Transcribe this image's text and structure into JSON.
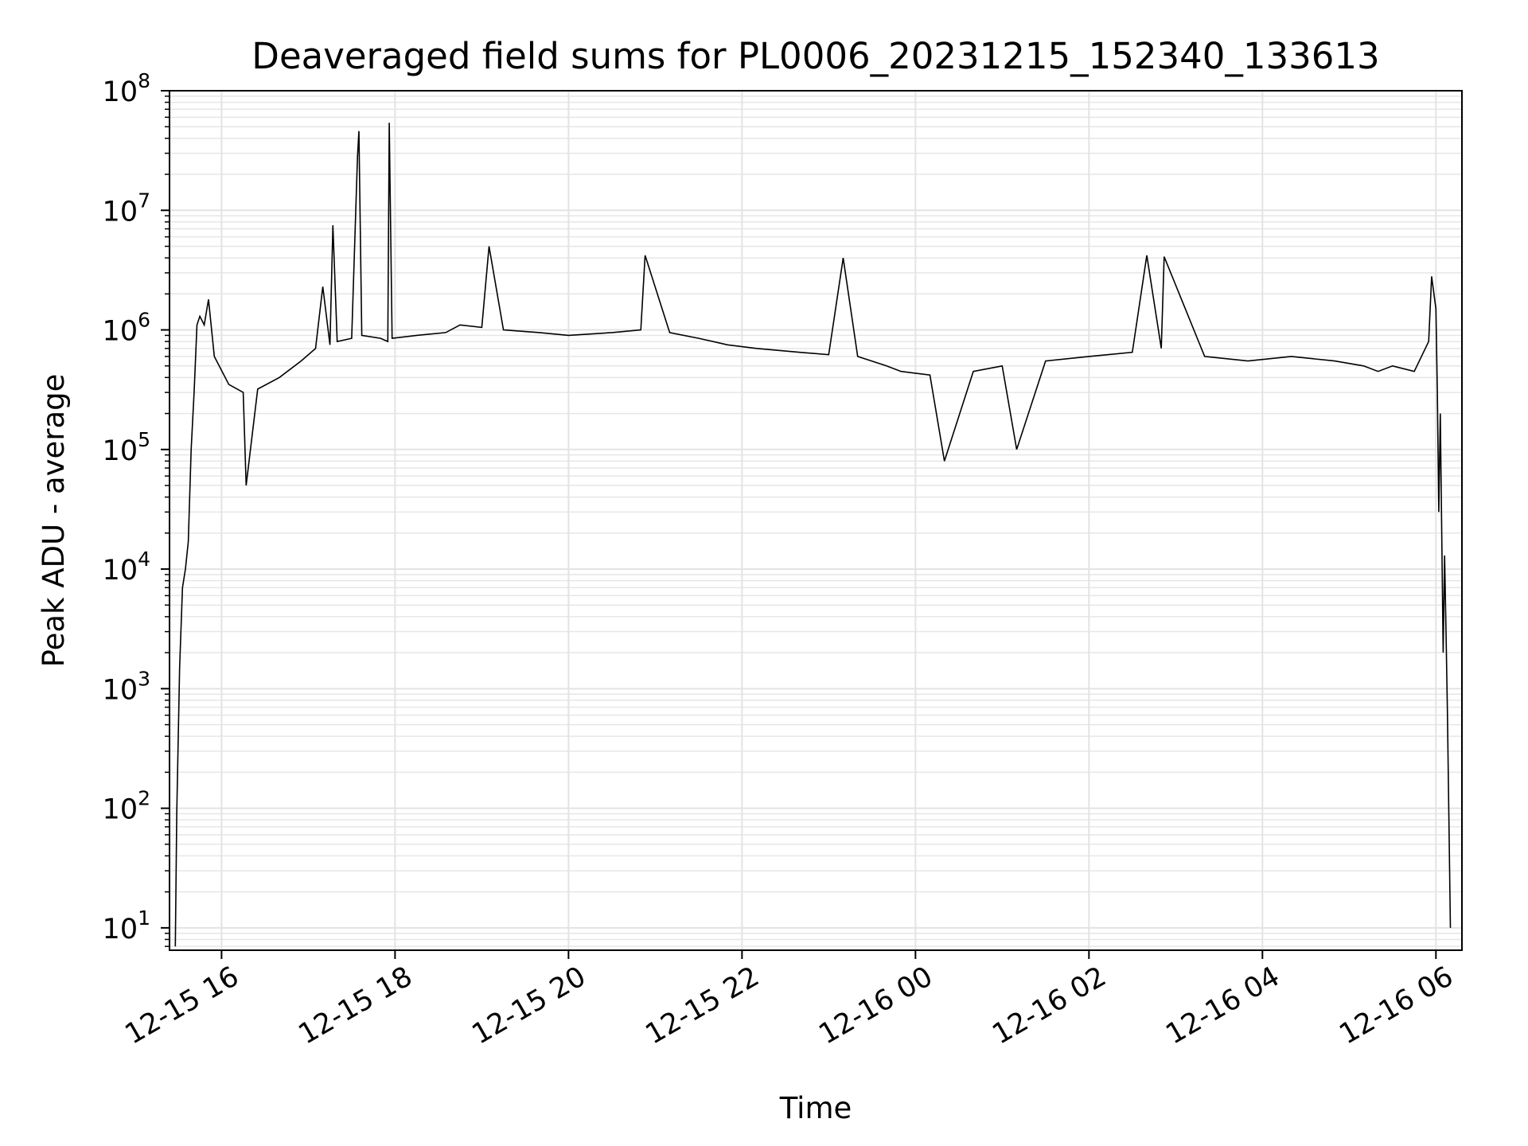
{
  "chart_data": {
    "type": "line",
    "title": "Deaveraged field sums for PL0006_20231215_152340_133613",
    "xlabel": "Time",
    "ylabel": "Peak ADU - average",
    "yscale": "log",
    "ylim": [
      6.5,
      100000000
    ],
    "xlim": [
      "2023-12-15 15:24",
      "2023-12-16 06:18"
    ],
    "grid": true,
    "line_color": "#000000",
    "x_ticks": [
      "2023-12-15 16:00",
      "2023-12-15 18:00",
      "2023-12-15 20:00",
      "2023-12-15 22:00",
      "2023-12-16 00:00",
      "2023-12-16 02:00",
      "2023-12-16 04:00",
      "2023-12-16 06:00"
    ],
    "x_tick_labels": [
      "12-15 16",
      "12-15 18",
      "12-15 20",
      "12-15 22",
      "12-16 00",
      "12-16 02",
      "12-16 04",
      "12-16 06"
    ],
    "y_ticks": [
      {
        "value": 10,
        "base": "10",
        "exp": "1"
      },
      {
        "value": 100,
        "base": "10",
        "exp": "2"
      },
      {
        "value": 1000,
        "base": "10",
        "exp": "3"
      },
      {
        "value": 10000,
        "base": "10",
        "exp": "4"
      },
      {
        "value": 100000,
        "base": "10",
        "exp": "5"
      },
      {
        "value": 1000000,
        "base": "10",
        "exp": "6"
      },
      {
        "value": 10000000,
        "base": "10",
        "exp": "7"
      },
      {
        "value": 100000000,
        "base": "10",
        "exp": "8"
      }
    ],
    "series": [
      {
        "points": [
          [
            "2023-12-15 15:28",
            7
          ],
          [
            "2023-12-15 15:29",
            90
          ],
          [
            "2023-12-15 15:31",
            1500
          ],
          [
            "2023-12-15 15:33",
            7000
          ],
          [
            "2023-12-15 15:35",
            10000
          ],
          [
            "2023-12-15 15:37",
            17000
          ],
          [
            "2023-12-15 15:39",
            100000
          ],
          [
            "2023-12-15 15:41",
            300000
          ],
          [
            "2023-12-15 15:43",
            1100000
          ],
          [
            "2023-12-15 15:45",
            1300000
          ],
          [
            "2023-12-15 15:48",
            1100000
          ],
          [
            "2023-12-15 15:51",
            1800000
          ],
          [
            "2023-12-15 15:55",
            600000
          ],
          [
            "2023-12-15 16:05",
            350000
          ],
          [
            "2023-12-15 16:15",
            300000
          ],
          [
            "2023-12-15 16:17",
            50000
          ],
          [
            "2023-12-15 16:25",
            320000
          ],
          [
            "2023-12-15 16:40",
            400000
          ],
          [
            "2023-12-15 16:55",
            550000
          ],
          [
            "2023-12-15 17:05",
            700000
          ],
          [
            "2023-12-15 17:10",
            2300000
          ],
          [
            "2023-12-15 17:15",
            750000
          ],
          [
            "2023-12-15 17:17",
            7500000
          ],
          [
            "2023-12-15 17:20",
            800000
          ],
          [
            "2023-12-15 17:30",
            850000
          ],
          [
            "2023-12-15 17:34",
            28000000
          ],
          [
            "2023-12-15 17:35",
            46000000
          ],
          [
            "2023-12-15 17:37",
            900000
          ],
          [
            "2023-12-15 17:50",
            850000
          ],
          [
            "2023-12-15 17:55",
            800000
          ],
          [
            "2023-12-15 17:56",
            54000000
          ],
          [
            "2023-12-15 17:58",
            850000
          ],
          [
            "2023-12-15 18:15",
            900000
          ],
          [
            "2023-12-15 18:35",
            950000
          ],
          [
            "2023-12-15 18:45",
            1100000
          ],
          [
            "2023-12-15 19:00",
            1050000
          ],
          [
            "2023-12-15 19:05",
            5000000
          ],
          [
            "2023-12-15 19:15",
            1000000
          ],
          [
            "2023-12-15 19:40",
            950000
          ],
          [
            "2023-12-15 20:00",
            900000
          ],
          [
            "2023-12-15 20:30",
            950000
          ],
          [
            "2023-12-15 20:50",
            1000000
          ],
          [
            "2023-12-15 20:53",
            4200000
          ],
          [
            "2023-12-15 21:10",
            950000
          ],
          [
            "2023-12-15 21:30",
            850000
          ],
          [
            "2023-12-15 21:50",
            750000
          ],
          [
            "2023-12-15 22:10",
            700000
          ],
          [
            "2023-12-15 22:40",
            650000
          ],
          [
            "2023-12-15 23:00",
            620000
          ],
          [
            "2023-12-15 23:10",
            4000000
          ],
          [
            "2023-12-15 23:20",
            600000
          ],
          [
            "2023-12-15 23:40",
            500000
          ],
          [
            "2023-12-15 23:50",
            450000
          ],
          [
            "2023-12-16 00:10",
            420000
          ],
          [
            "2023-12-16 00:20",
            80000
          ],
          [
            "2023-12-16 00:40",
            450000
          ],
          [
            "2023-12-16 01:00",
            500000
          ],
          [
            "2023-12-16 01:10",
            100000
          ],
          [
            "2023-12-16 01:30",
            550000
          ],
          [
            "2023-12-16 02:00",
            600000
          ],
          [
            "2023-12-16 02:30",
            650000
          ],
          [
            "2023-12-16 02:40",
            4200000
          ],
          [
            "2023-12-16 02:50",
            700000
          ],
          [
            "2023-12-16 02:52",
            4100000
          ],
          [
            "2023-12-16 03:20",
            600000
          ],
          [
            "2023-12-16 03:50",
            550000
          ],
          [
            "2023-12-16 04:20",
            600000
          ],
          [
            "2023-12-16 04:50",
            550000
          ],
          [
            "2023-12-16 05:10",
            500000
          ],
          [
            "2023-12-16 05:20",
            450000
          ],
          [
            "2023-12-16 05:30",
            500000
          ],
          [
            "2023-12-16 05:45",
            450000
          ],
          [
            "2023-12-16 05:55",
            800000
          ],
          [
            "2023-12-16 05:57",
            2800000
          ],
          [
            "2023-12-16 06:00",
            1500000
          ],
          [
            "2023-12-16 06:01",
            300000
          ],
          [
            "2023-12-16 06:02",
            30000
          ],
          [
            "2023-12-16 06:03",
            200000
          ],
          [
            "2023-12-16 06:04",
            20000
          ],
          [
            "2023-12-16 06:05",
            2000
          ],
          [
            "2023-12-16 06:06",
            13000
          ],
          [
            "2023-12-16 06:07",
            3000
          ],
          [
            "2023-12-16 06:08",
            600
          ],
          [
            "2023-12-16 06:10",
            10
          ]
        ]
      }
    ]
  }
}
